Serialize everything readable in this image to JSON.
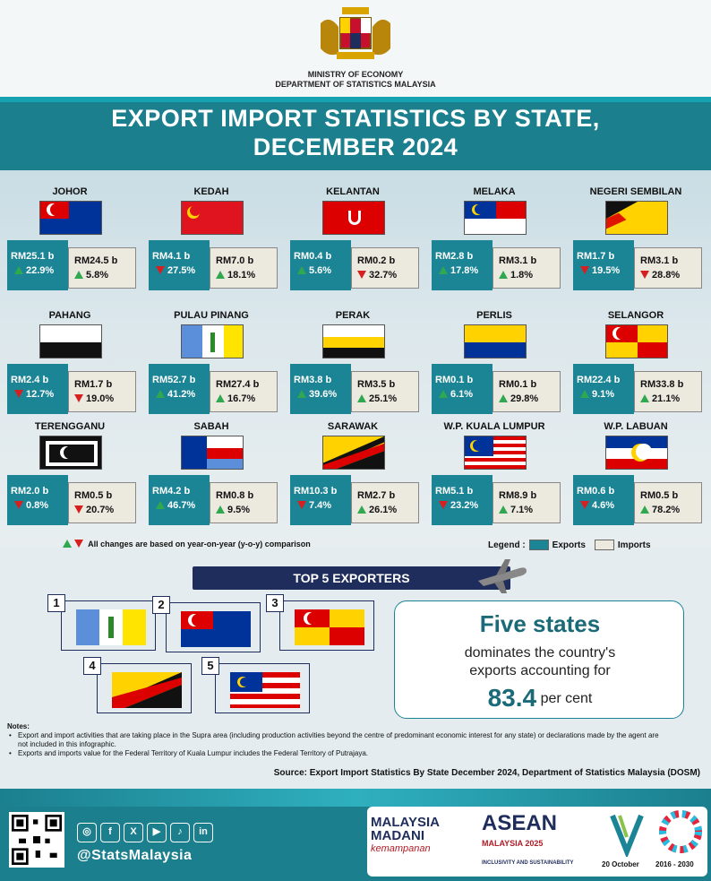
{
  "header": {
    "ministry_line1": "MINISTRY OF ECONOMY",
    "ministry_line2": "DEPARTMENT OF STATISTICS MALAYSIA",
    "title_line1": "EXPORT IMPORT STATISTICS BY STATE,",
    "title_line2": "DECEMBER 2024"
  },
  "states": [
    {
      "name": "JOHOR",
      "exp": "RM25.1 b",
      "exp_pct": "22.9%",
      "exp_dir": "up",
      "imp": "RM24.5 b",
      "imp_pct": "5.8%",
      "imp_dir": "up"
    },
    {
      "name": "KEDAH",
      "exp": "RM4.1 b",
      "exp_pct": "27.5%",
      "exp_dir": "down",
      "imp": "RM7.0 b",
      "imp_pct": "18.1%",
      "imp_dir": "up"
    },
    {
      "name": "KELANTAN",
      "exp": "RM0.4 b",
      "exp_pct": "5.6%",
      "exp_dir": "up",
      "imp": "RM0.2 b",
      "imp_pct": "32.7%",
      "imp_dir": "down"
    },
    {
      "name": "MELAKA",
      "exp": "RM2.8 b",
      "exp_pct": "17.8%",
      "exp_dir": "up",
      "imp": "RM3.1 b",
      "imp_pct": "1.8%",
      "imp_dir": "up"
    },
    {
      "name": "NEGERI SEMBILAN",
      "exp": "RM1.7 b",
      "exp_pct": "19.5%",
      "exp_dir": "down",
      "imp": "RM3.1 b",
      "imp_pct": "28.8%",
      "imp_dir": "down"
    },
    {
      "name": "PAHANG",
      "exp": "RM2.4 b",
      "exp_pct": "12.7%",
      "exp_dir": "down",
      "imp": "RM1.7 b",
      "imp_pct": "19.0%",
      "imp_dir": "down"
    },
    {
      "name": "PULAU PINANG",
      "exp": "RM52.7 b",
      "exp_pct": "41.2%",
      "exp_dir": "up",
      "imp": "RM27.4 b",
      "imp_pct": "16.7%",
      "imp_dir": "up"
    },
    {
      "name": "PERAK",
      "exp": "RM3.8 b",
      "exp_pct": "39.6%",
      "exp_dir": "up",
      "imp": "RM3.5 b",
      "imp_pct": "25.1%",
      "imp_dir": "up"
    },
    {
      "name": "PERLIS",
      "exp": "RM0.1 b",
      "exp_pct": "6.1%",
      "exp_dir": "up",
      "imp": "RM0.1 b",
      "imp_pct": "29.8%",
      "imp_dir": "up"
    },
    {
      "name": "SELANGOR",
      "exp": "RM22.4 b",
      "exp_pct": "9.1%",
      "exp_dir": "up",
      "imp": "RM33.8 b",
      "imp_pct": "21.1%",
      "imp_dir": "up"
    },
    {
      "name": "TERENGGANU",
      "exp": "RM2.0 b",
      "exp_pct": "0.8%",
      "exp_dir": "down",
      "imp": "RM0.5 b",
      "imp_pct": "20.7%",
      "imp_dir": "down"
    },
    {
      "name": "SABAH",
      "exp": "RM4.2 b",
      "exp_pct": "46.7%",
      "exp_dir": "up",
      "imp": "RM0.8 b",
      "imp_pct": "9.5%",
      "imp_dir": "up"
    },
    {
      "name": "SARAWAK",
      "exp": "RM10.3 b",
      "exp_pct": "7.4%",
      "exp_dir": "down",
      "imp": "RM2.7 b",
      "imp_pct": "26.1%",
      "imp_dir": "up"
    },
    {
      "name": "W.P. KUALA LUMPUR",
      "exp": "RM5.1 b",
      "exp_pct": "23.2%",
      "exp_dir": "down",
      "imp": "RM8.9 b",
      "imp_pct": "7.1%",
      "imp_dir": "up"
    },
    {
      "name": "W.P. LABUAN",
      "exp": "RM0.6 b",
      "exp_pct": "4.6%",
      "exp_dir": "down",
      "imp": "RM0.5 b",
      "imp_pct": "78.2%",
      "imp_dir": "up"
    }
  ],
  "change_note": "All changes are based on year-on-year (y-o-y) comparison",
  "legend": {
    "label": "Legend :",
    "exports": "Exports",
    "imports": "Imports",
    "exports_color": "#1b8595",
    "imports_color": "#ece9df"
  },
  "top5": {
    "title": "TOP 5 EXPORTERS",
    "ranks": [
      "1",
      "2",
      "3",
      "4",
      "5"
    ],
    "states": [
      "PULAU PINANG",
      "JOHOR",
      "SELANGOR",
      "SARAWAK",
      "W.P. KUALA LUMPUR"
    ]
  },
  "callout": {
    "headline": "Five states",
    "line1": "dominates the country's",
    "line2": "exports accounting for",
    "value": "83.4",
    "unit": "per cent"
  },
  "notes": {
    "title": "Notes:",
    "items": [
      "Export and import activities that are taking place in the Supra area (including production activities beyond the centre of predominant economic interest for any state) or declarations made by the agent are not included in this infographic.",
      "Exports and imports value for the Federal Territory of Kuala Lumpur includes the Federal Territory of Putrajaya."
    ]
  },
  "source": "Source:  Export Import Statistics By State December 2024, Department of Statistics Malaysia (DOSM)",
  "footer": {
    "handle": "@StatsMalaysia",
    "social_icons": [
      "instagram-icon",
      "facebook-icon",
      "x-icon",
      "youtube-icon",
      "tiktok-icon",
      "linkedin-icon"
    ],
    "madani_line1": "MALAYSIA",
    "madani_line2": "MADANI",
    "madani_tag": "kemampanan",
    "asean": "ASEAN",
    "asean_sub": "MALAYSIA 2025",
    "asean_tag": "INCLUSIVITY AND SUSTAINABILITY",
    "date1": "20 October",
    "date2": "2016 - 2030"
  }
}
